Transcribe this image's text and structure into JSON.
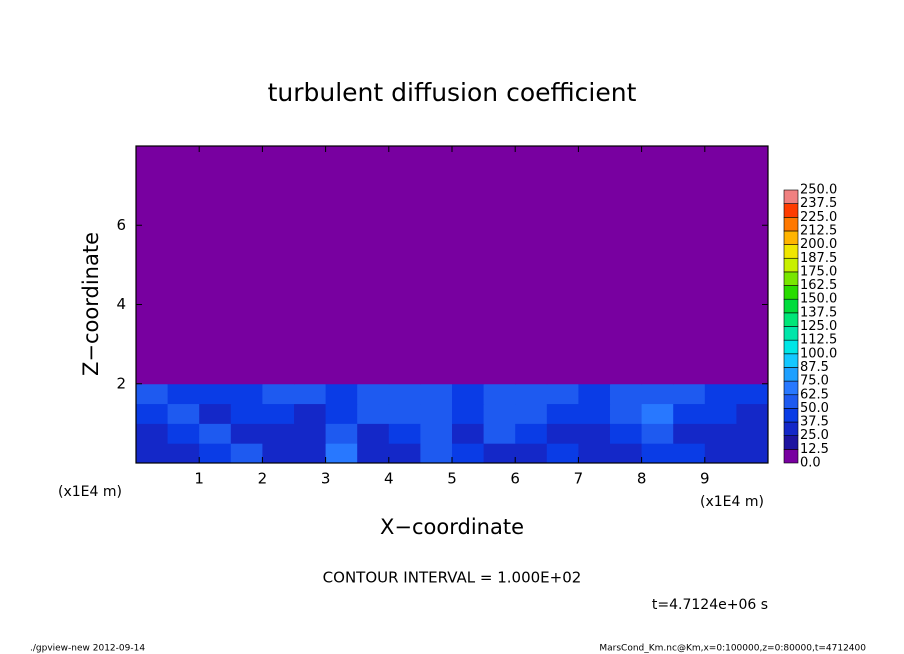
{
  "chart_data": {
    "type": "heatmap",
    "title": "turbulent diffusion coefficient",
    "x_label": "X−coordinate",
    "y_label": "Z−coordinate",
    "x_unit": "(x1E4 m)",
    "xlim": [
      0,
      10
    ],
    "ylim": [
      0,
      8
    ],
    "xticks": [
      1,
      2,
      3,
      4,
      5,
      6,
      7,
      8,
      9
    ],
    "yticks": [
      2,
      4,
      6
    ],
    "x": [
      0,
      0.5,
      1,
      1.5,
      2,
      2.5,
      3,
      3.5,
      4,
      4.5,
      5,
      5.5,
      6,
      6.5,
      7,
      7.5,
      8,
      8.5,
      9,
      9.5,
      10
    ],
    "y": [
      0,
      0.5,
      1,
      1.5,
      2,
      8
    ],
    "values": [
      [
        30,
        30,
        40,
        60,
        35,
        30,
        70,
        35,
        30,
        55,
        40,
        30,
        35,
        45,
        30,
        30,
        40,
        45,
        30,
        25
      ],
      [
        35,
        45,
        55,
        35,
        30,
        35,
        60,
        35,
        40,
        60,
        35,
        50,
        40,
        35,
        35,
        40,
        60,
        35,
        35,
        30
      ],
      [
        45,
        55,
        35,
        40,
        45,
        35,
        45,
        60,
        50,
        55,
        45,
        55,
        60,
        40,
        45,
        55,
        65,
        40,
        45,
        35
      ],
      [
        50,
        45,
        40,
        45,
        50,
        55,
        45,
        50,
        60,
        50,
        45,
        50,
        55,
        50,
        45,
        50,
        60,
        50,
        45,
        45
      ],
      [
        0,
        0,
        0,
        0,
        0,
        0,
        0,
        0,
        0,
        0,
        0,
        0,
        0,
        0,
        0,
        0,
        0,
        0,
        0,
        0
      ]
    ],
    "colorbar": {
      "levels": [
        {
          "value": 0,
          "label": "0.0"
        },
        12.5,
        {
          "value": 25,
          "label": "25.0"
        },
        37.5,
        {
          "value": 50,
          "label": "50.0"
        },
        62.5,
        {
          "value": 75,
          "label": "75.0"
        },
        87.5,
        {
          "value": 100,
          "label": "100.0"
        },
        112.5,
        {
          "value": 125,
          "label": "125.0"
        },
        137.5,
        {
          "value": 150,
          "label": "150.0"
        },
        162.5,
        {
          "value": 175,
          "label": "175.0"
        },
        187.5,
        {
          "value": 200,
          "label": "200.0"
        },
        212.5,
        {
          "value": 225,
          "label": "225.0"
        },
        237.5,
        {
          "value": 250,
          "label": "250.0"
        }
      ],
      "colors": [
        "#7800a0",
        "#1e14a0",
        "#1428c8",
        "#0a3ce6",
        "#1e5af0",
        "#2878ff",
        "#1ea0ff",
        "#14c8ff",
        "#00e6e6",
        "#00e6aa",
        "#00e678",
        "#00dc3c",
        "#28dc00",
        "#78e600",
        "#c8f000",
        "#f0e600",
        "#ffb400",
        "#ff7800",
        "#ff3c00",
        "#f08080"
      ]
    },
    "contour_note": "CONTOUR INTERVAL = 1.000E+02",
    "time_note": "t=4.7124e+06 s",
    "footer_left": "./gpview-new  2012-09-14",
    "footer_right": "MarsCond_Km.nc@Km,x=0:100000,z=0:80000,t=4712400"
  }
}
